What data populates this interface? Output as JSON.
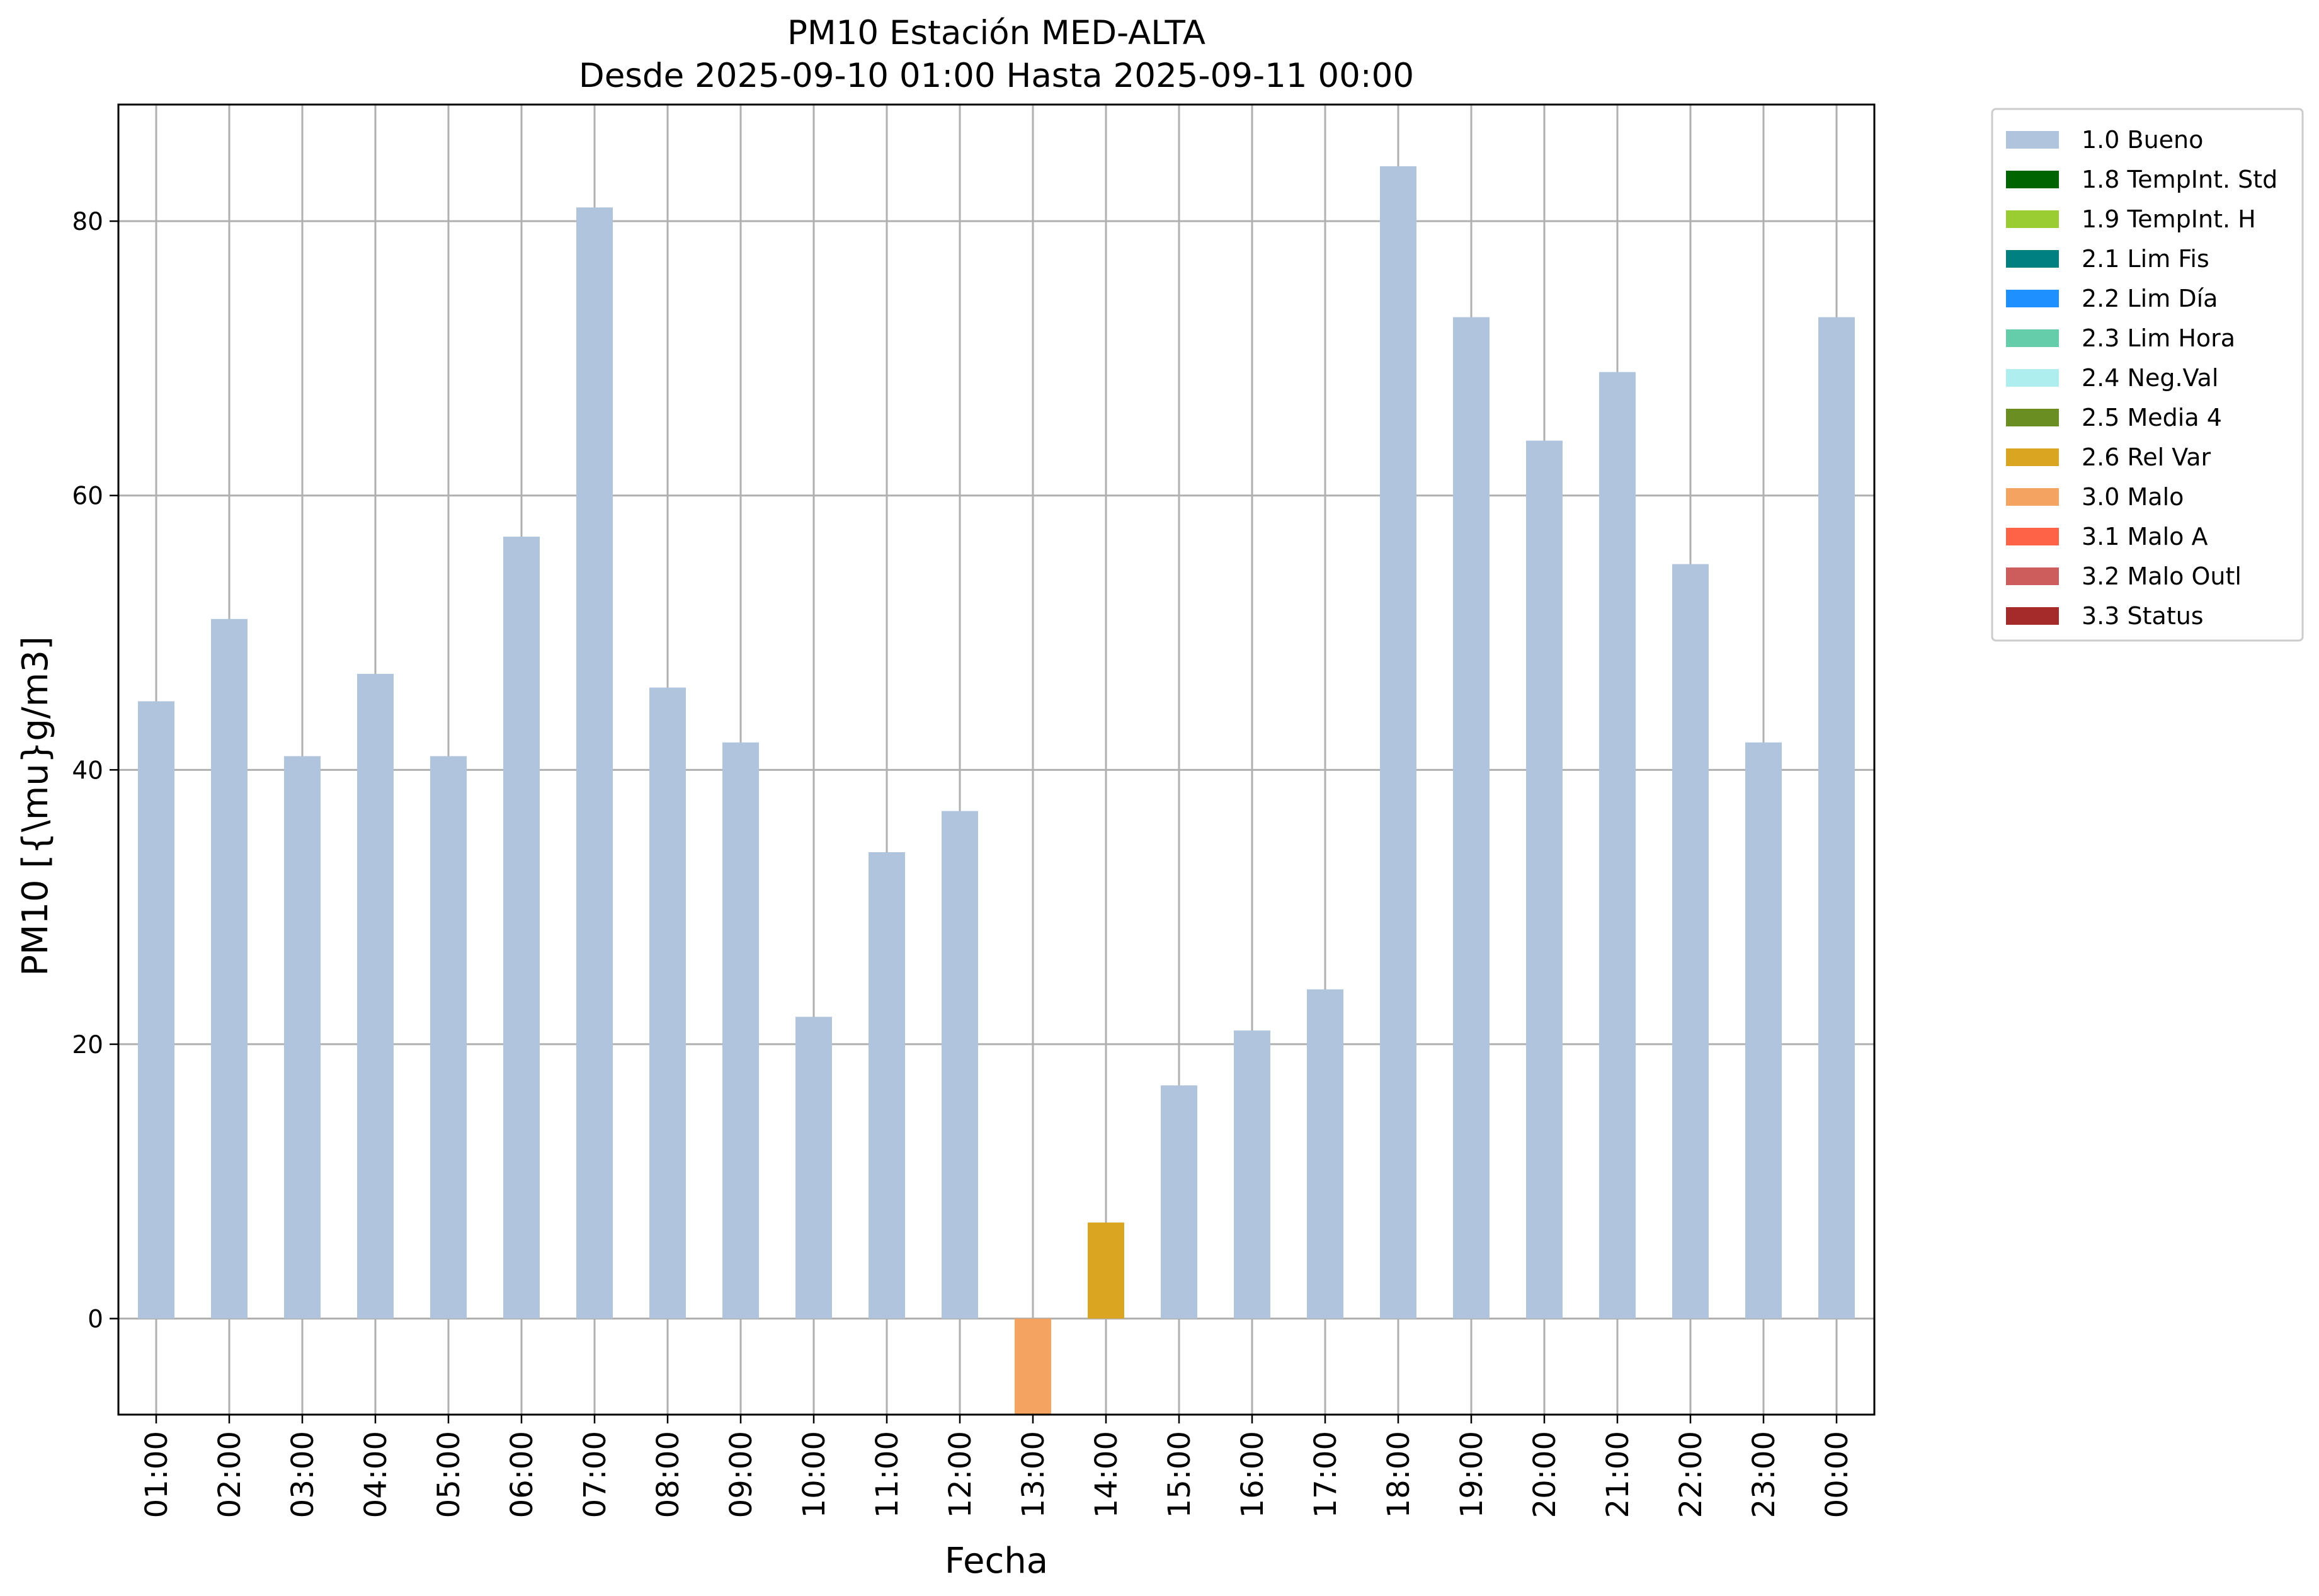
{
  "chart_data": {
    "type": "bar",
    "title": "PM10 Estación MED-ALTA",
    "subtitle": "Desde 2025-09-10 01:00 Hasta 2025-09-11 00:00",
    "xlabel": "Fecha",
    "ylabel": "PM10 [{\\mu}g/m3]",
    "categories": [
      "01:00",
      "02:00",
      "03:00",
      "04:00",
      "05:00",
      "06:00",
      "07:00",
      "08:00",
      "09:00",
      "10:00",
      "11:00",
      "12:00",
      "13:00",
      "14:00",
      "15:00",
      "16:00",
      "17:00",
      "18:00",
      "19:00",
      "20:00",
      "21:00",
      "22:00",
      "23:00",
      "00:00"
    ],
    "values": [
      45,
      51,
      41,
      47,
      41,
      57,
      81,
      46,
      42,
      22,
      34,
      37,
      -7,
      7,
      17,
      21,
      24,
      84,
      73,
      64,
      69,
      55,
      42,
      73
    ],
    "flags": [
      "1.0 Bueno",
      "1.0 Bueno",
      "1.0 Bueno",
      "1.0 Bueno",
      "1.0 Bueno",
      "1.0 Bueno",
      "1.0 Bueno",
      "1.0 Bueno",
      "1.0 Bueno",
      "1.0 Bueno",
      "1.0 Bueno",
      "1.0 Bueno",
      "3.0 Malo",
      "2.6 Rel Var",
      "1.0 Bueno",
      "1.0 Bueno",
      "1.0 Bueno",
      "1.0 Bueno",
      "1.0 Bueno",
      "1.0 Bueno",
      "1.0 Bueno",
      "1.0 Bueno",
      "1.0 Bueno",
      "1.0 Bueno"
    ],
    "ylim": [
      -7,
      88.5
    ],
    "yticks": [
      0,
      20,
      40,
      60,
      80
    ],
    "grid": true,
    "legend_position": "outside-right",
    "legend": [
      {
        "label": "1.0 Bueno",
        "color": "#b0c4de"
      },
      {
        "label": "1.8 TempInt. Std",
        "color": "#006400"
      },
      {
        "label": "1.9 TempInt. H",
        "color": "#9acd32"
      },
      {
        "label": "2.1 Lim Fis",
        "color": "#008080"
      },
      {
        "label": "2.2 Lim Día",
        "color": "#1e90ff"
      },
      {
        "label": "2.3 Lim Hora",
        "color": "#66cdaa"
      },
      {
        "label": "2.4 Neg.Val",
        "color": "#afeeee"
      },
      {
        "label": "2.5 Media 4",
        "color": "#6b8e23"
      },
      {
        "label": "2.6 Rel Var",
        "color": "#daa520"
      },
      {
        "label": "3.0 Malo",
        "color": "#f4a460"
      },
      {
        "label": "3.1 Malo A",
        "color": "#ff6347"
      },
      {
        "label": "3.2 Malo Outl",
        "color": "#cd5c5c"
      },
      {
        "label": "3.3 Status",
        "color": "#a52a2a"
      }
    ]
  }
}
